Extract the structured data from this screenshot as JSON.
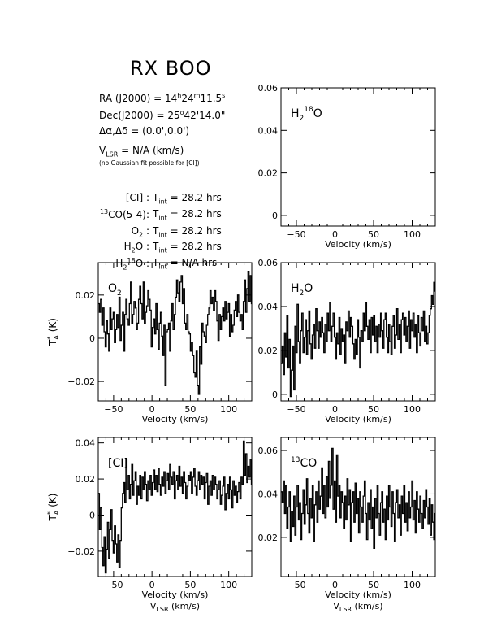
{
  "header": {
    "title": "RX BOO",
    "ra_label": "RA (J2000) =",
    "ra_h": "14",
    "ra_m": "24",
    "ra_s": "11.5",
    "dec_label": "Dec(J2000) =",
    "dec_d": "25",
    "dec_rest": "42'14.0\"",
    "offset": "Δα,Δδ = (0.0',0.0')",
    "vlsr_value": "= N/A (km/s)",
    "note": "(no Gaussian fit possible for [CI])",
    "integrations": [
      {
        "line": "[CI] :",
        "value": "= 28.2 hrs"
      },
      {
        "line": "CO(5-4):",
        "value": "= 28.2 hrs",
        "sup": "13"
      },
      {
        "line": "O",
        "sub": "2",
        "tail": " :",
        "value": "= 28.2 hrs"
      },
      {
        "line": "H",
        "sub": "2",
        "tail": "O :",
        "value": "= 28.2 hrs"
      },
      {
        "line": "H",
        "sub": "2",
        "sup": "18",
        "tail": "O :",
        "value": "= N/A hrs"
      }
    ],
    "tint_label": "T",
    "tint_sub": "int"
  },
  "chart_data": [
    {
      "id": "h2_18o",
      "type": "line",
      "label": "H2 18O",
      "xlabel": "Velocity (km/s)",
      "ylabel": "",
      "xlim": [
        -70,
        130
      ],
      "ylim": [
        -0.005,
        0.06
      ],
      "xticks": [
        -50,
        0,
        50,
        100
      ],
      "xticklabels": [
        "−50",
        "0",
        "50",
        "100"
      ],
      "yticks": [
        0,
        0.02,
        0.04,
        0.06
      ],
      "yticklabels": [
        "0",
        "0.02",
        "0.04",
        "0.06"
      ],
      "series": []
    },
    {
      "id": "o2",
      "type": "line",
      "label": "O2",
      "xlabel": "Velocity (km/s)",
      "ylabel": "T*A (K)",
      "xlim": [
        -70,
        130
      ],
      "ylim": [
        -0.029,
        0.035
      ],
      "xticks": [
        -50,
        0,
        50,
        100
      ],
      "xticklabels": [
        "−50",
        "0",
        "50",
        "100"
      ],
      "yticks": [
        -0.02,
        0,
        0.02
      ],
      "yticklabels": [
        "−0.02",
        "0",
        "0.02"
      ],
      "series": [
        {
          "x_start": -70,
          "x_step": 1.5,
          "values": [
            0.016,
            0.012,
            0.018,
            0.006,
            0.014,
            0.003,
            -0.004,
            0.008,
            0.002,
            -0.006,
            0.014,
            0.004,
            0.009,
            0.012,
            -0.002,
            0.004,
            0.011,
            0.005,
            0.019,
            -0.001,
            0.006,
            0.012,
            -0.006,
            0.011,
            0.018,
            0.009,
            0.006,
            0.016,
            0.026,
            0.007,
            0.011,
            0.017,
            0.014,
            0.004,
            0.007,
            0.018,
            0.024,
            0.016,
            0.009,
            0.026,
            0.007,
            0.012,
            0.015,
            0.022,
            0.018,
            0.013,
            -0.004,
            0.005,
            0.009,
            0.002,
            0.016,
            0.004,
            -0.005,
            0.007,
            0.012,
            0.001,
            -0.008,
            0.006,
            -0.022,
            0.003,
            0.004,
            0.007,
            -0.006,
            0.008,
            0.016,
            0.004,
            0.011,
            0.019,
            0.027,
            0.021,
            0.017,
            0.026,
            0.029,
            0.016,
            0.023,
            0.007,
            0.004,
            0.011,
            0.003,
            0.002,
            -0.006,
            -0.002,
            -0.008,
            -0.016,
            -0.018,
            -0.006,
            -0.022,
            -0.026,
            -0.004,
            -0.012,
            0.007,
            0.003,
            0.001,
            -0.002,
            0.006,
            0.011,
            0.014,
            0.022,
            0.016,
            0.019,
            0.013,
            0.022,
            0.017,
            0.008,
            -0.001,
            0.011,
            0.004,
            0.01,
            0.014,
            0.008,
            0.017,
            0.009,
            0.012,
            0.016,
            0.001,
            0.011,
            0.003,
            0.006,
            0.013,
            0.017,
            0.01,
            0.02,
            0.012,
            0.008,
            0.011,
            0.004,
            0.017,
            0.027,
            0.012,
            0.023,
            0.031,
            0.017,
            0.029,
            0.016
          ]
        }
      ]
    },
    {
      "id": "h2o",
      "type": "line",
      "label": "H2O",
      "xlabel": "Velocity (km/s)",
      "ylabel": "",
      "xlim": [
        -70,
        130
      ],
      "ylim": [
        -0.003,
        0.06
      ],
      "xticks": [
        -50,
        0,
        50,
        100
      ],
      "xticklabels": [
        "−50",
        "0",
        "50",
        "100"
      ],
      "yticks": [
        0,
        0.02,
        0.04,
        0.06
      ],
      "yticklabels": [
        "0",
        "0.02",
        "0.04",
        "0.06"
      ],
      "series": [
        {
          "x_start": -70,
          "x_step": 1.5,
          "values": [
            0.014,
            0.022,
            0.009,
            0.028,
            0.017,
            0.036,
            0.012,
            0.025,
            -0.001,
            0.011,
            0.022,
            0.002,
            0.031,
            0.019,
            0.041,
            0.024,
            0.014,
            0.029,
            0.037,
            0.019,
            0.026,
            0.034,
            0.018,
            0.029,
            0.038,
            0.023,
            0.016,
            0.027,
            0.032,
            0.021,
            0.039,
            0.029,
            0.021,
            0.033,
            0.026,
            0.035,
            0.028,
            0.019,
            0.032,
            0.024,
            0.037,
            0.029,
            0.042,
            0.024,
            0.031,
            0.037,
            0.026,
            0.016,
            0.028,
            0.023,
            0.035,
            0.018,
            0.03,
            0.024,
            0.027,
            0.014,
            0.033,
            0.029,
            0.038,
            0.026,
            0.035,
            0.031,
            0.023,
            0.016,
            0.025,
            0.018,
            0.034,
            0.026,
            0.012,
            0.029,
            0.024,
            0.037,
            0.029,
            0.042,
            0.031,
            0.025,
            0.034,
            0.019,
            0.035,
            0.027,
            0.036,
            0.024,
            0.031,
            0.019,
            0.032,
            0.026,
            0.037,
            0.029,
            0.021,
            0.034,
            0.037,
            0.026,
            0.019,
            0.032,
            0.024,
            0.018,
            0.031,
            0.036,
            0.021,
            0.027,
            0.039,
            0.025,
            0.032,
            0.019,
            0.034,
            0.037,
            0.027,
            0.035,
            0.024,
            0.031,
            0.038,
            0.021,
            0.034,
            0.029,
            0.037,
            0.026,
            0.032,
            0.019,
            0.036,
            0.028,
            0.022,
            0.035,
            0.029,
            0.038,
            0.024,
            0.031,
            0.023,
            0.028,
            0.036,
            0.039,
            0.045,
            0.041,
            0.051,
            0.047
          ]
        }
      ]
    },
    {
      "id": "ci",
      "type": "line",
      "label": "[CI]",
      "xlabel": "Velocity (km/s)",
      "ylabel": "T*A (K)",
      "xlim": [
        -70,
        130
      ],
      "ylim": [
        -0.034,
        0.043
      ],
      "xticks": [
        -50,
        0,
        50,
        100
      ],
      "xticklabels": [
        "−50",
        "0",
        "50",
        "100"
      ],
      "yticks": [
        -0.02,
        0,
        0.02,
        0.04
      ],
      "yticklabels": [
        "−0.02",
        "0",
        "0.02",
        "0.04"
      ],
      "series": [
        {
          "x_start": -70,
          "x_step": 1.5,
          "values": [
            0.012,
            -0.008,
            0.004,
            -0.018,
            -0.028,
            -0.012,
            -0.032,
            -0.019,
            -0.004,
            -0.024,
            -0.008,
            0.003,
            -0.014,
            -0.021,
            -0.006,
            -0.016,
            -0.026,
            -0.011,
            -0.029,
            -0.014,
            0.004,
            0.012,
            0.018,
            0.007,
            0.031,
            0.014,
            0.022,
            0.009,
            0.017,
            0.028,
            0.011,
            0.019,
            0.024,
            0.006,
            0.016,
            0.011,
            0.022,
            0.009,
            0.021,
            0.014,
            0.024,
            0.017,
            0.008,
            0.019,
            0.014,
            0.022,
            0.011,
            0.018,
            0.025,
            0.014,
            0.022,
            0.013,
            0.026,
            0.017,
            0.011,
            0.021,
            0.016,
            0.024,
            0.012,
            0.019,
            0.023,
            0.014,
            0.028,
            0.021,
            0.017,
            0.024,
            0.009,
            0.019,
            0.022,
            0.014,
            0.027,
            0.016,
            0.021,
            0.012,
            0.024,
            0.018,
            0.009,
            0.016,
            0.022,
            0.019,
            0.024,
            0.012,
            0.021,
            0.026,
            0.016,
            0.011,
            0.019,
            0.024,
            0.014,
            0.022,
            0.017,
            0.021,
            0.009,
            0.018,
            0.023,
            0.006,
            0.016,
            0.019,
            0.011,
            0.022,
            0.014,
            0.021,
            0.017,
            0.009,
            0.014,
            0.019,
            0.006,
            0.011,
            0.016,
            0.021,
            0.003,
            0.012,
            0.017,
            0.009,
            0.021,
            0.014,
            0.004,
            0.019,
            0.011,
            0.016,
            0.007,
            0.013,
            0.018,
            0.009,
            0.021,
            0.017,
            0.041,
            0.022,
            0.034,
            0.018,
            0.027,
            0.021,
            0.031,
            0.017
          ]
        }
      ]
    },
    {
      "id": "13co",
      "type": "line",
      "label": "13CO",
      "xlabel": "Velocity (km/s)",
      "ylabel": "",
      "xlim": [
        -70,
        130
      ],
      "ylim": [
        0.002,
        0.066
      ],
      "xticks": [
        -50,
        0,
        50,
        100
      ],
      "xticklabels": [
        "−50",
        "0",
        "50",
        "100"
      ],
      "yticks": [
        0.02,
        0.04,
        0.06
      ],
      "yticklabels": [
        "0.02",
        "0.04",
        "0.06"
      ],
      "series": [
        {
          "x_start": -70,
          "x_step": 1.5,
          "values": [
            0.041,
            0.036,
            0.046,
            0.031,
            0.044,
            0.024,
            0.034,
            0.041,
            0.018,
            0.032,
            0.025,
            0.039,
            0.021,
            0.034,
            0.044,
            0.028,
            0.036,
            0.019,
            0.031,
            0.042,
            0.026,
            0.035,
            0.047,
            0.031,
            0.022,
            0.038,
            0.029,
            0.044,
            0.018,
            0.035,
            0.041,
            0.027,
            0.046,
            0.033,
            0.039,
            0.052,
            0.031,
            0.044,
            0.029,
            0.048,
            0.034,
            0.055,
            0.038,
            0.044,
            0.061,
            0.033,
            0.046,
            0.027,
            0.058,
            0.039,
            0.044,
            0.029,
            0.041,
            0.036,
            0.024,
            0.039,
            0.028,
            0.047,
            0.035,
            0.042,
            0.018,
            0.036,
            0.041,
            0.027,
            0.045,
            0.031,
            0.038,
            0.022,
            0.041,
            0.034,
            0.027,
            0.039,
            0.046,
            0.031,
            0.019,
            0.036,
            0.028,
            0.042,
            0.024,
            0.034,
            0.015,
            0.038,
            0.029,
            0.044,
            0.031,
            0.021,
            0.036,
            0.041,
            0.027,
            0.033,
            0.019,
            0.039,
            0.028,
            0.044,
            0.034,
            0.025,
            0.041,
            0.031,
            0.018,
            0.036,
            0.042,
            0.029,
            0.035,
            0.021,
            0.039,
            0.031,
            0.044,
            0.027,
            0.036,
            0.023,
            0.041,
            0.029,
            0.034,
            0.046,
            0.028,
            0.037,
            0.022,
            0.041,
            0.033,
            0.027,
            0.039,
            0.031,
            0.024,
            0.037,
            0.029,
            0.042,
            0.034,
            0.026,
            0.038,
            0.021,
            0.035,
            0.027,
            0.019,
            0.031
          ]
        }
      ]
    }
  ]
}
